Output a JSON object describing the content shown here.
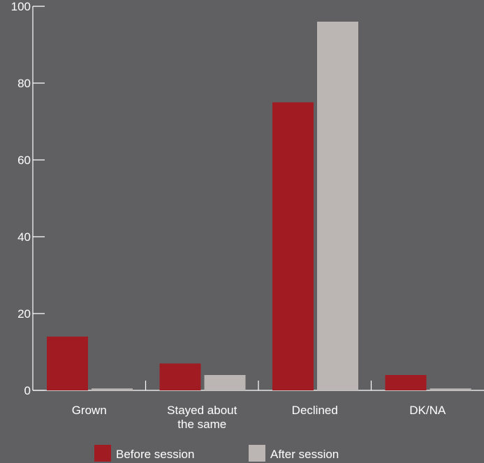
{
  "chart_data": {
    "type": "bar",
    "categories": [
      [
        "Grown"
      ],
      [
        "Stayed about",
        "the same"
      ],
      [
        "Declined"
      ],
      [
        "DK/NA"
      ]
    ],
    "series": [
      {
        "name": "Before session",
        "values": [
          14,
          7,
          75,
          4
        ],
        "color": "#a01b22"
      },
      {
        "name": "After session",
        "values": [
          0.5,
          4,
          96,
          0.5
        ],
        "color": "#bbb6b4"
      }
    ],
    "ylim": [
      0,
      100
    ],
    "yticks": [
      0,
      20,
      40,
      60,
      80,
      100
    ],
    "grid": false,
    "legend_position": "bottom-center",
    "background": "#606062"
  }
}
